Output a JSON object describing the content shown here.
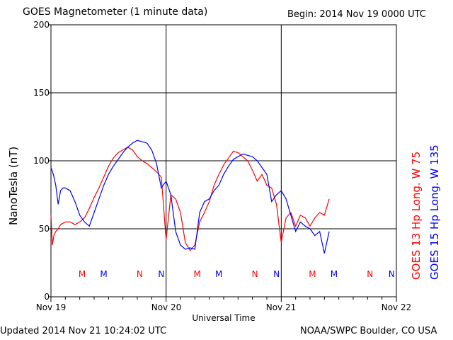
{
  "title": "GOES Magnetometer (1 minute data)",
  "begin": "Begin:  2014 Nov 19 0000 UTC",
  "updated": "Updated 2014 Nov 21 10:24:02 UTC",
  "credit": "NOAA/SWPC Boulder, CO USA",
  "colors": {
    "goes13": "#ff0000",
    "goes15": "#0000ff",
    "grid": "#000000"
  },
  "chart_data": {
    "type": "line",
    "title": "GOES Magnetometer (1 minute data)",
    "xlabel": "Universal Time",
    "ylabel": "NanoTesla (nT)",
    "ylim": [
      0,
      200
    ],
    "xlim": [
      "2014-11-19 00:00",
      "2014-11-22 00:00"
    ],
    "y_ticks": [
      "0",
      "50",
      "100",
      "150",
      "200"
    ],
    "x_ticks": [
      "Nov 19",
      "Nov 20",
      "Nov 21",
      "Nov 22"
    ],
    "grid": true,
    "series": [
      {
        "name": "GOES 13 Hp  Long. W 75",
        "color": "#ff0000",
        "x_hours": [
          0,
          0.3,
          0.6,
          1,
          1.5,
          2,
          3,
          4,
          5,
          6,
          7,
          8,
          9,
          10,
          11,
          12,
          13,
          14,
          15,
          16,
          17,
          18,
          19,
          20,
          21,
          22,
          23,
          24,
          25,
          26,
          27,
          28,
          29,
          30,
          31,
          32,
          33,
          34,
          35,
          36,
          37,
          38,
          39,
          40,
          41,
          42,
          43,
          44,
          45,
          46,
          47,
          48,
          49,
          50,
          51,
          52,
          53,
          54,
          55,
          56,
          57,
          58
        ],
        "values": [
          60,
          38,
          45,
          48,
          50,
          53,
          55,
          55,
          53,
          55,
          58,
          65,
          73,
          80,
          88,
          96,
          102,
          106,
          108,
          110,
          108,
          103,
          100,
          98,
          95,
          92,
          88,
          42,
          75,
          72,
          62,
          40,
          34,
          38,
          55,
          62,
          70,
          82,
          90,
          97,
          102,
          107,
          106,
          103,
          100,
          93,
          85,
          90,
          82,
          80,
          68,
          40,
          58,
          62,
          52,
          60,
          58,
          52,
          58,
          62,
          60,
          72
        ]
      },
      {
        "name": "GOES 15 Hp  Long. W 135",
        "color": "#0000ff",
        "x_hours": [
          0,
          0.5,
          1,
          1.5,
          2,
          2.5,
          3,
          4,
          5,
          6,
          7,
          8,
          9,
          10,
          11,
          12,
          13,
          14,
          15,
          16,
          17,
          18,
          19,
          20,
          21,
          22,
          23,
          24,
          25,
          26,
          27,
          28,
          29,
          30,
          31,
          32,
          33,
          34,
          35,
          36,
          37,
          38,
          39,
          40,
          41,
          42,
          43,
          44,
          45,
          46,
          47,
          48,
          49,
          50,
          51,
          52,
          53,
          54,
          55,
          56,
          57,
          58
        ],
        "values": [
          95,
          90,
          82,
          68,
          78,
          80,
          80,
          78,
          70,
          60,
          55,
          52,
          62,
          72,
          82,
          90,
          96,
          101,
          106,
          110,
          113,
          115,
          114,
          113,
          108,
          98,
          80,
          85,
          75,
          48,
          38,
          35,
          36,
          35,
          62,
          70,
          72,
          78,
          82,
          90,
          96,
          101,
          103,
          105,
          104,
          103,
          100,
          95,
          90,
          70,
          75,
          78,
          72,
          60,
          48,
          55,
          52,
          50,
          45,
          48,
          32,
          48
        ]
      }
    ],
    "markers": [
      {
        "label": "M",
        "color": "#ff0000",
        "x_hours": 6.5
      },
      {
        "label": "M",
        "color": "#0000ff",
        "x_hours": 11
      },
      {
        "label": "N",
        "color": "#ff0000",
        "x_hours": 18.5
      },
      {
        "label": "N",
        "color": "#0000ff",
        "x_hours": 23
      },
      {
        "label": "M",
        "color": "#ff0000",
        "x_hours": 30.5
      },
      {
        "label": "M",
        "color": "#0000ff",
        "x_hours": 35
      },
      {
        "label": "N",
        "color": "#ff0000",
        "x_hours": 42.5
      },
      {
        "label": "N",
        "color": "#0000ff",
        "x_hours": 47
      },
      {
        "label": "M",
        "color": "#ff0000",
        "x_hours": 54.5
      },
      {
        "label": "M",
        "color": "#0000ff",
        "x_hours": 59
      },
      {
        "label": "N",
        "color": "#ff0000",
        "x_hours": 66.5
      },
      {
        "label": "N",
        "color": "#0000ff",
        "x_hours": 71
      }
    ]
  }
}
